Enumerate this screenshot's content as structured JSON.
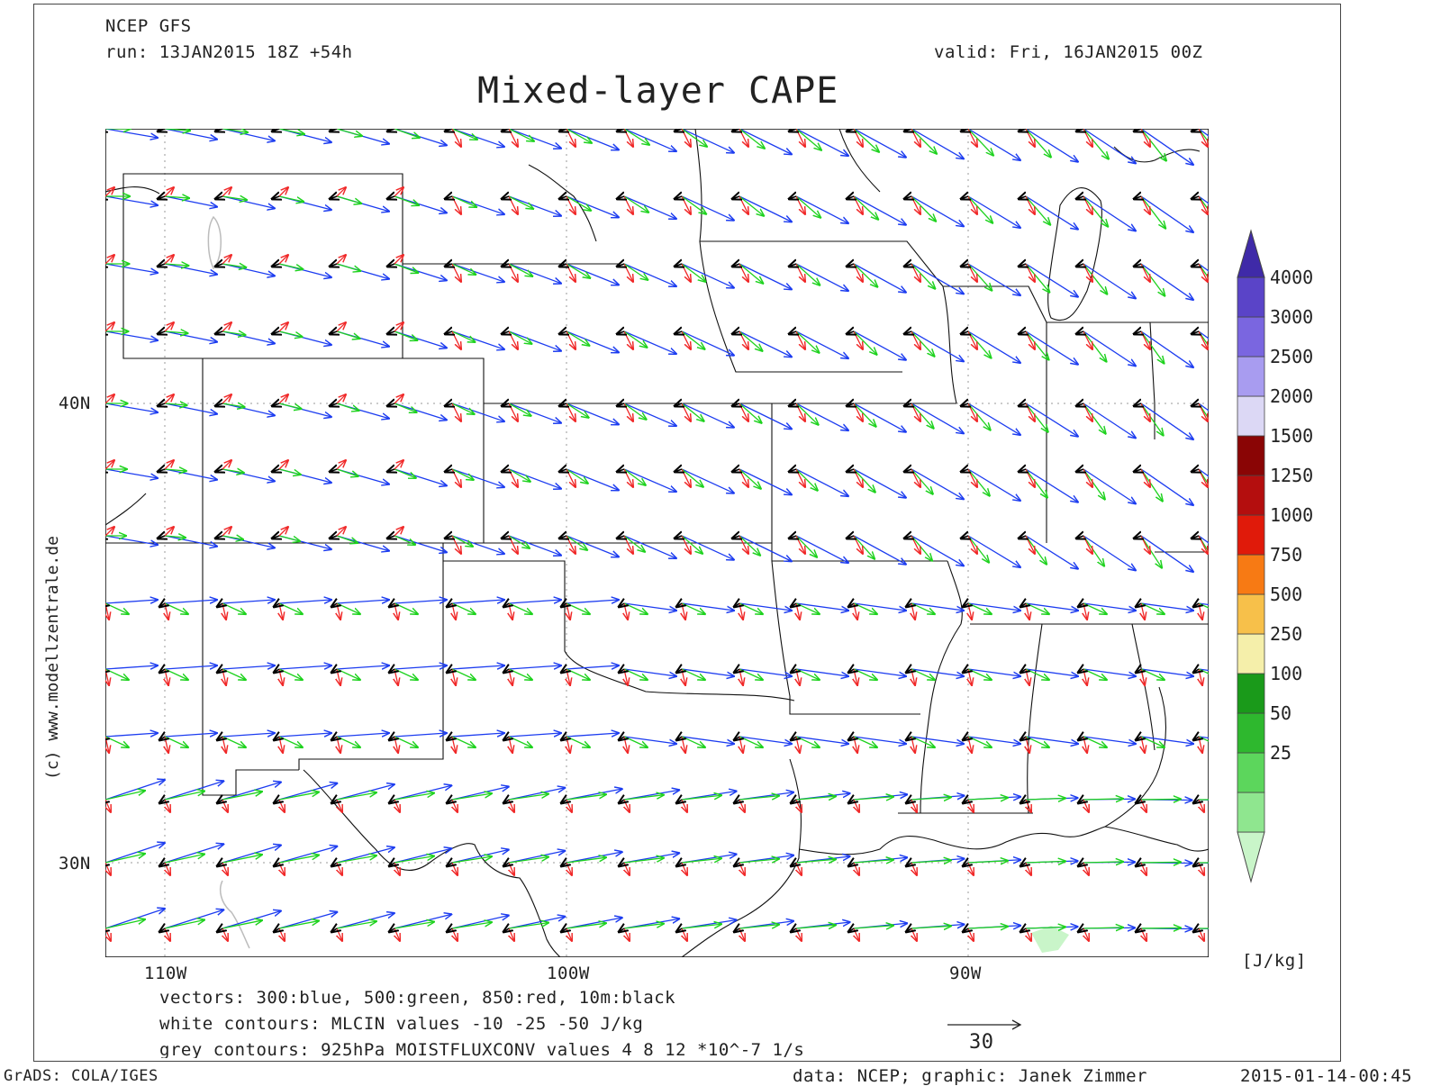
{
  "header": {
    "model": "NCEP GFS",
    "run": "run: 13JAN2015 18Z +54h",
    "valid": "valid: Fri, 16JAN2015 00Z",
    "title": "Mixed-layer CAPE"
  },
  "axes": {
    "lat_labels": [
      "40N",
      "30N"
    ],
    "lon_labels": [
      "110W",
      "100W",
      "90W"
    ]
  },
  "legend": {
    "unit": "[J/kg]",
    "levels": [
      "4000",
      "3000",
      "2500",
      "2000",
      "1500",
      "1250",
      "1000",
      "750",
      "500",
      "250",
      "100",
      "50",
      "25"
    ],
    "colors": [
      "#c9f5c9",
      "#8fe68f",
      "#5cd65c",
      "#2eb82e",
      "#1a9a1a",
      "#f5efaa",
      "#f7c04a",
      "#f77a14",
      "#e01a0a",
      "#b40e0e",
      "#8a0505",
      "#dcd8f5",
      "#a89cf0",
      "#7a66e0",
      "#5a44c8",
      "#3f2aa8"
    ]
  },
  "footer": {
    "vectors_note": "vectors: 300:blue, 500:green, 850:red, 10m:black",
    "white_contours": "white contours: MLCIN values -10 -25 -50 J/kg",
    "grey_contours": "grey contours: 925hPa MOISTFLUXCONV values 4 8 12 *10^-7 1/s",
    "reference_vector": "30",
    "grads": "GrADS: COLA/IGES",
    "credit": "data: NCEP; graphic: Janek Zimmer",
    "timestamp": "2015-01-14-00:45",
    "copyright": "(c) www.modellzentrale.de"
  },
  "vector_colors": {
    "300hPa": "#1c3cf0",
    "500hPa": "#1ed21e",
    "850hPa": "#f02828",
    "10m": "#000000"
  }
}
